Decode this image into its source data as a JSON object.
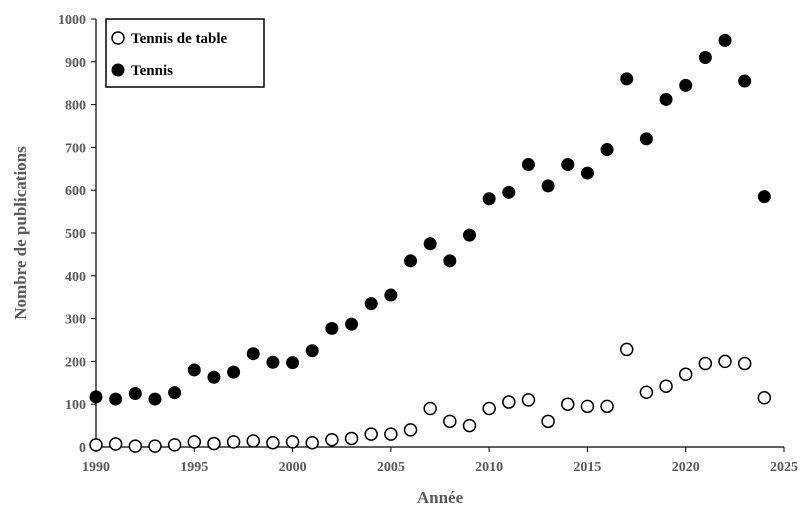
{
  "chart_data": {
    "type": "scatter",
    "xlabel": "Année",
    "ylabel": "Nombre de publications",
    "xlim": [
      1990,
      2025
    ],
    "ylim": [
      0,
      1000
    ],
    "x_ticks": [
      "1990",
      "1995",
      "2000",
      "2005",
      "2010",
      "2015",
      "2020",
      "2025"
    ],
    "y_ticks": [
      "0",
      "100",
      "200",
      "300",
      "400",
      "500",
      "600",
      "700",
      "800",
      "900",
      "1000"
    ],
    "grid": false,
    "legend_position": "top-left",
    "x": [
      1990,
      1991,
      1992,
      1993,
      1994,
      1995,
      1996,
      1997,
      1998,
      1999,
      2000,
      2001,
      2002,
      2003,
      2004,
      2005,
      2006,
      2007,
      2008,
      2009,
      2010,
      2011,
      2012,
      2013,
      2014,
      2015,
      2016,
      2017,
      2018,
      2019,
      2020,
      2021,
      2022,
      2023,
      2024
    ],
    "series": [
      {
        "name": "Tennis de table",
        "marker": "open-circle",
        "color": "#000000",
        "values": [
          5,
          7,
          2,
          2,
          5,
          12,
          8,
          12,
          14,
          10,
          12,
          10,
          17,
          20,
          30,
          30,
          40,
          90,
          60,
          50,
          90,
          105,
          110,
          60,
          100,
          95,
          95,
          228,
          128,
          142,
          170,
          195,
          200,
          195,
          115
        ]
      },
      {
        "name": "Tennis",
        "marker": "filled-circle",
        "color": "#000000",
        "values": [
          117,
          112,
          125,
          112,
          127,
          180,
          163,
          175,
          218,
          198,
          197,
          225,
          277,
          287,
          335,
          355,
          435,
          475,
          435,
          495,
          580,
          595,
          660,
          610,
          660,
          640,
          695,
          860,
          720,
          812,
          845,
          910,
          950,
          855,
          585
        ]
      }
    ]
  }
}
